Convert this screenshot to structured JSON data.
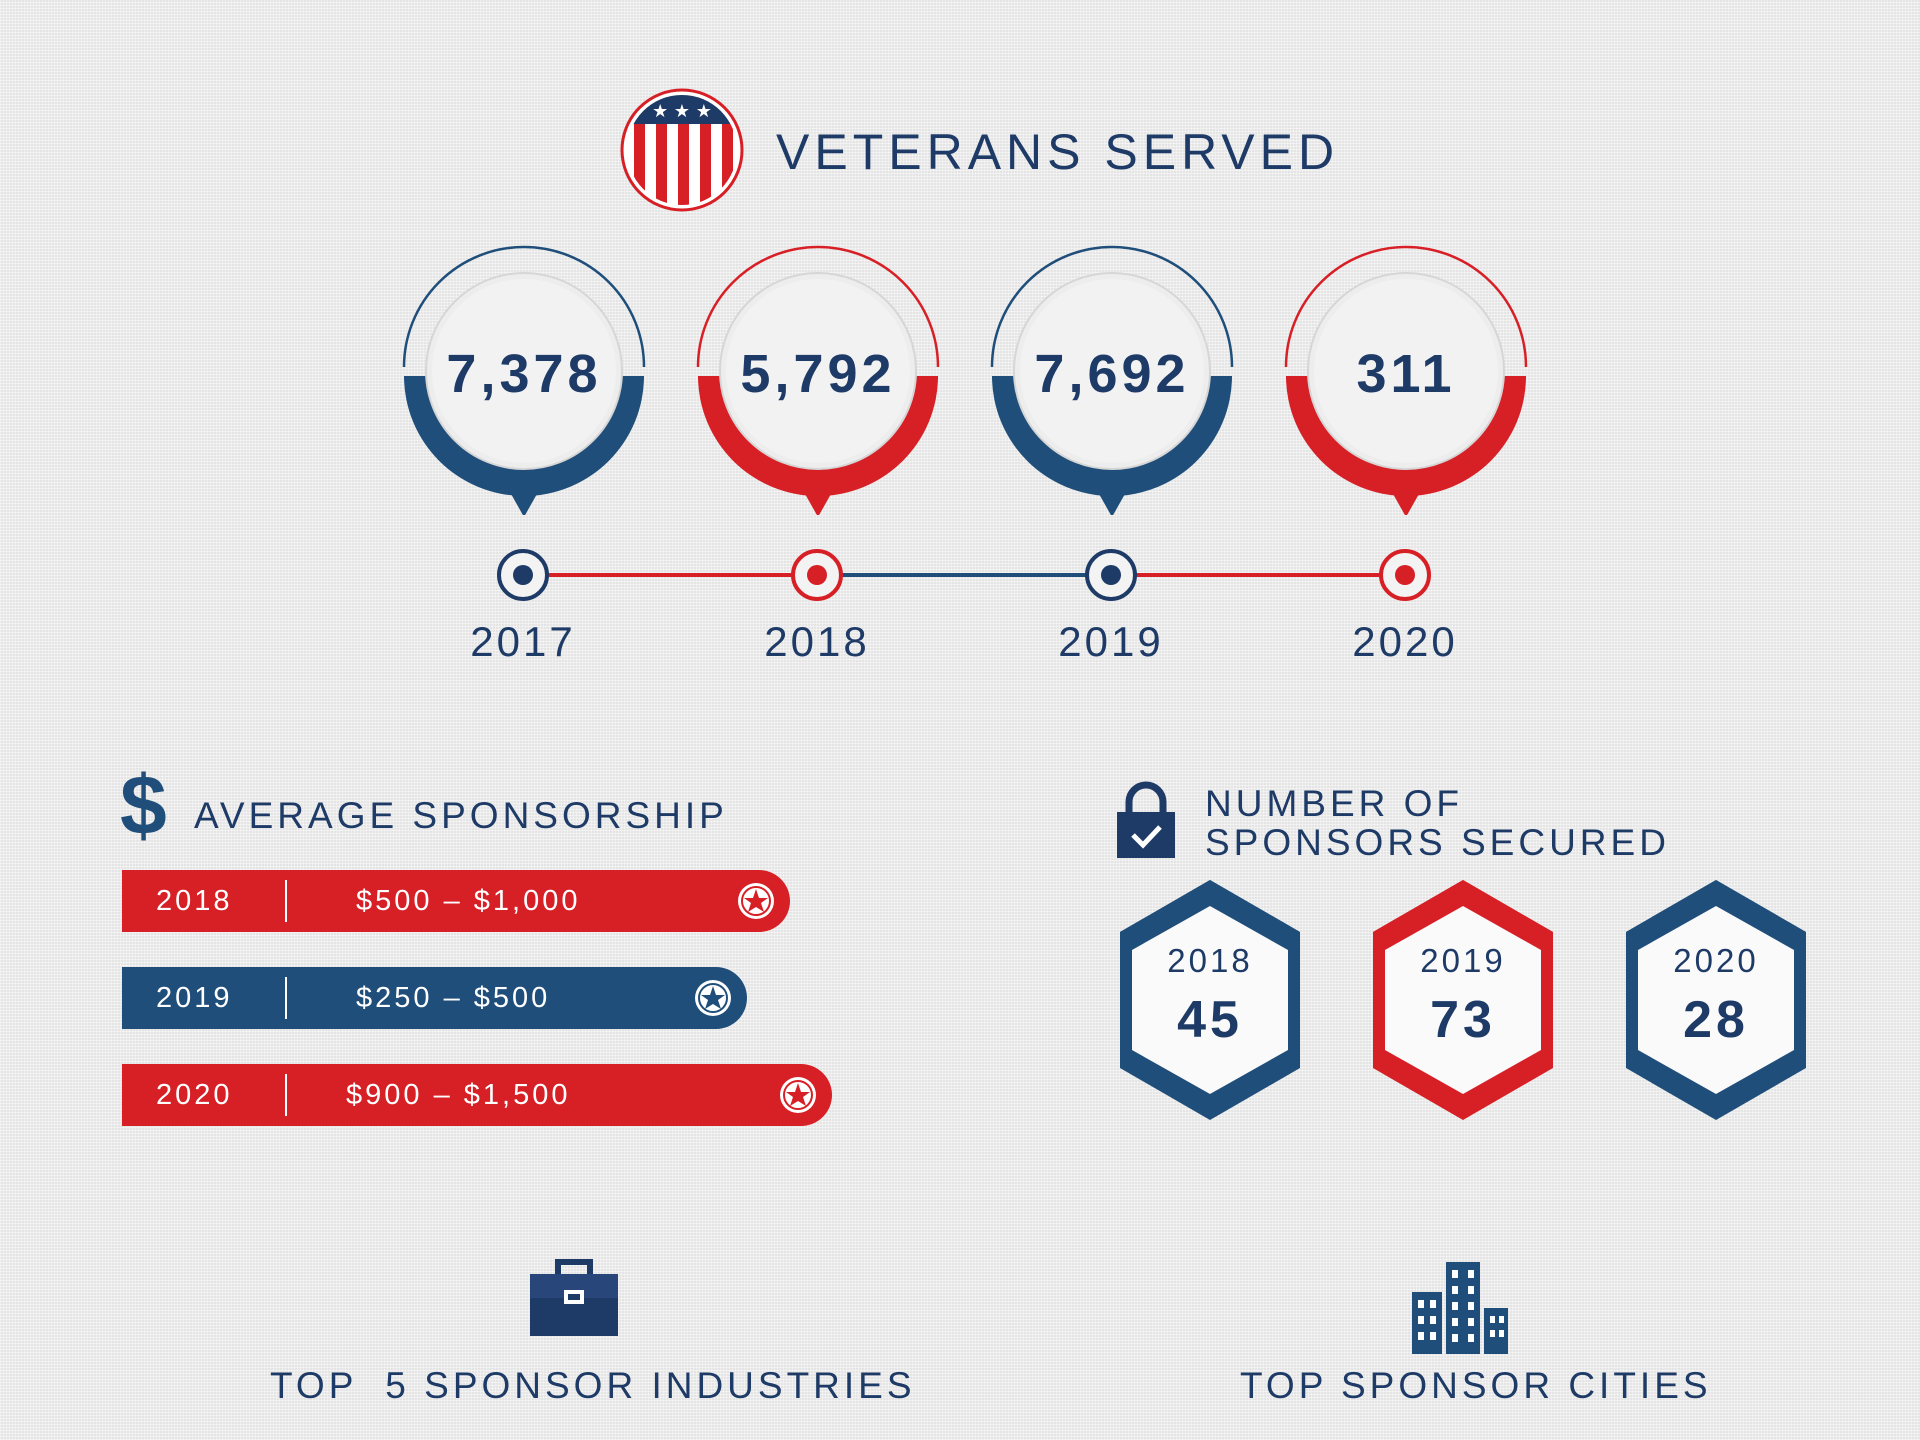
{
  "header": {
    "title": "VETERANS SERVED"
  },
  "veterans_served": [
    {
      "year": "2017",
      "value": "7,378",
      "color": "#1f4e7a"
    },
    {
      "year": "2018",
      "value": "5,792",
      "color": "#d71f26"
    },
    {
      "year": "2019",
      "value": "7,692",
      "color": "#1f4e7a"
    },
    {
      "year": "2020",
      "value": "311",
      "color": "#d71f26"
    }
  ],
  "avg_sponsorship": {
    "title": "AVERAGE SPONSORSHIP",
    "rows": [
      {
        "year": "2018",
        "range": "$500 – $1,000",
        "color": "#d71f26"
      },
      {
        "year": "2019",
        "range": "$250 – $500",
        "color": "#1f4e7a"
      },
      {
        "year": "2020",
        "range": "$900 – $1,500",
        "color": "#d71f26"
      }
    ]
  },
  "sponsors_secured": {
    "title_line1": "NUMBER OF",
    "title_line2": "SPONSORS SECURED",
    "items": [
      {
        "year": "2018",
        "value": "45",
        "color": "#1f4e7a"
      },
      {
        "year": "2019",
        "value": "73",
        "color": "#d71f26"
      },
      {
        "year": "2020",
        "value": "28",
        "color": "#1f4e7a"
      }
    ]
  },
  "footer": {
    "industries_label": "TOP  5 SPONSOR INDUSTRIES",
    "cities_label": "TOP SPONSOR CITIES"
  },
  "colors": {
    "navy": "#1e3a66",
    "blue": "#1f4e7a",
    "red": "#d71f26"
  },
  "icons": [
    "flag-shield-icon",
    "dollar-icon",
    "lock-check-icon",
    "briefcase-icon",
    "buildings-icon",
    "star-icon"
  ]
}
